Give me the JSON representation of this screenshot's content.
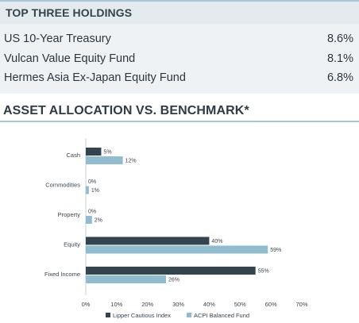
{
  "holdings": {
    "title": "TOP THREE HOLDINGS",
    "items": [
      {
        "name": "US 10-Year Treasury",
        "value": "8.6%"
      },
      {
        "name": "Vulcan Value Equity Fund",
        "value": "8.1%"
      },
      {
        "name": "Hermes Asia Ex-Japan Equity Fund",
        "value": "6.8%"
      }
    ]
  },
  "colors": {
    "series_dark": "#34444e",
    "series_light": "#8fbccf",
    "header_bg": "#e4ebef",
    "accent_rule": "#a9c6d4"
  },
  "chart_data": {
    "type": "bar",
    "orientation": "horizontal",
    "title": "ASSET ALLOCATION VS. BENCHMARK*",
    "categories": [
      "Cash",
      "Commodities",
      "Property",
      "Equity",
      "Fixed Income"
    ],
    "series": [
      {
        "name": "Lipper Cautious Index",
        "values": [
          5,
          0,
          0,
          40,
          55
        ],
        "labels": [
          "5%",
          "0%",
          "0%",
          "40%",
          "55%"
        ],
        "color": "#34444e"
      },
      {
        "name": "ACPI Balanced Fund",
        "values": [
          12,
          1,
          2,
          59,
          26
        ],
        "labels": [
          "12%",
          "1%",
          "2%",
          "59%",
          "26%"
        ],
        "color": "#8fbccf"
      }
    ],
    "xlim": [
      0,
      70
    ],
    "xticks": [
      0,
      10,
      20,
      30,
      40,
      50,
      60,
      70
    ],
    "xtick_labels": [
      "0%",
      "10%",
      "20%",
      "30%",
      "40%",
      "50%",
      "60%",
      "70%"
    ],
    "grid": false,
    "legend": "bottom-center"
  }
}
